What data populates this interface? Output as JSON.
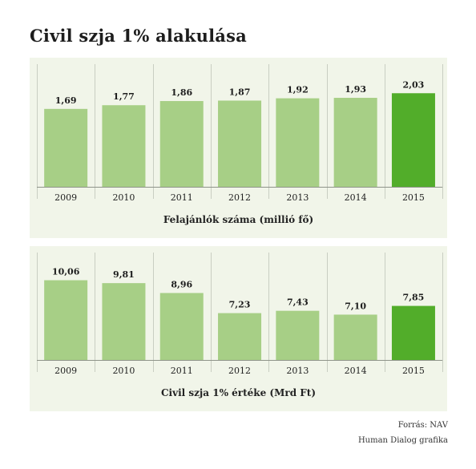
{
  "title": "Civil szja 1% alakulása",
  "colors": {
    "bar": "#a7cf86",
    "highlight": "#52ad2a",
    "panel_bg": "#f1f5e9",
    "grid": "#c9cec2",
    "axis": "#8f948a"
  },
  "chart_data": [
    {
      "type": "bar",
      "categories": [
        "2009",
        "2010",
        "2011",
        "2012",
        "2013",
        "2014",
        "2015"
      ],
      "values": [
        1.69,
        1.77,
        1.86,
        1.87,
        1.92,
        1.93,
        2.03
      ],
      "value_labels": [
        "1,69",
        "1,77",
        "1,86",
        "1,87",
        "1,92",
        "1,93",
        "2,03"
      ],
      "highlight_category": "2015",
      "xlabel": "Felajánlók száma (millió fő)",
      "grid": "vertical separators"
    },
    {
      "type": "bar",
      "categories": [
        "2009",
        "2010",
        "2011",
        "2012",
        "2013",
        "2014",
        "2015"
      ],
      "values": [
        10.06,
        9.81,
        8.96,
        7.23,
        7.43,
        7.1,
        7.85
      ],
      "value_labels": [
        "10,06",
        "9,81",
        "8,96",
        "7,23",
        "7,43",
        "7,10",
        "7,85"
      ],
      "highlight_category": "2015",
      "xlabel": "Civil szja 1% értéke (Mrd Ft)",
      "grid": "vertical separators"
    }
  ],
  "footer": {
    "source": "Forrás: NAV",
    "credit": "Human Dialog grafika"
  }
}
